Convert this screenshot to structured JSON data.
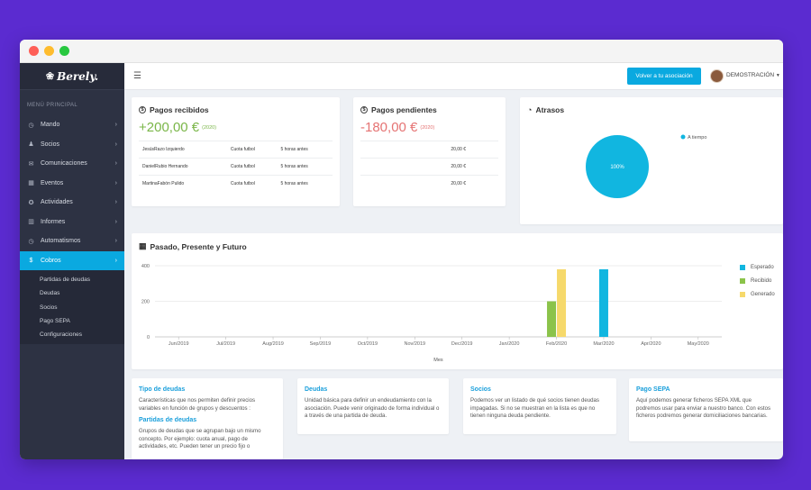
{
  "colors": {
    "accent": "#0aa9e0",
    "sidebar": "#2d3243",
    "green": "#7ab648",
    "red": "#e57373",
    "bar_esperado": "#11b6e0",
    "bar_recibido": "#8bc34a",
    "bar_generado": "#f6d96b"
  },
  "app": {
    "logo": "Berely."
  },
  "sidebar": {
    "menu_title": "MENÚ PRINCIPAL",
    "items": [
      {
        "label": "Mando",
        "icon": "clock-icon"
      },
      {
        "label": "Socios",
        "icon": "users-icon"
      },
      {
        "label": "Comunicaciones",
        "icon": "mail-icon"
      },
      {
        "label": "Eventos",
        "icon": "calendar-icon"
      },
      {
        "label": "Actividades",
        "icon": "star-icon"
      },
      {
        "label": "Informes",
        "icon": "chart-icon"
      },
      {
        "label": "Automatismos",
        "icon": "clock-icon"
      },
      {
        "label": "Cobros",
        "icon": "dollar-icon",
        "active": true
      }
    ],
    "subitems": [
      "Partidas de deudas",
      "Deudas",
      "Socios",
      "Pago SEPA",
      "Configuraciones"
    ]
  },
  "topbar": {
    "back_button": "Volver a tu asociación",
    "user_name": "DEMOSTRACIÓN"
  },
  "pagos_recibidos": {
    "title": "Pagos recibidos",
    "amount": "+200,00 €",
    "year": "(2020)",
    "rows": [
      {
        "name": "JesúsRazo Izquierdo",
        "concept": "Cuota futbol",
        "time": "5 horas antes"
      },
      {
        "name": "DanielRubio Hernando",
        "concept": "Cuota futbol",
        "time": "5 horas antes"
      },
      {
        "name": "MartinaFabón Pulido",
        "concept": "Cuota futbol",
        "time": "5 horas antes"
      }
    ]
  },
  "pagos_pendientes": {
    "title": "Pagos pendientes",
    "amount": "-180,00 €",
    "year": "(2020)",
    "rows": [
      {
        "value": "20,00 €"
      },
      {
        "value": "20,00 €"
      },
      {
        "value": "20,00 €"
      }
    ]
  },
  "atrasos": {
    "title": "Atrasos",
    "legend": "A tiempo",
    "pie_label": "100%",
    "pie_value": 1.0
  },
  "chart_title": "Pasado, Presente y Futuro",
  "chart_data": {
    "type": "bar",
    "categories": [
      "Jun/2019",
      "Jul/2019",
      "Aug/2019",
      "Sep/2019",
      "Oct/2019",
      "Nov/2019",
      "Dec/2019",
      "Jan/2020",
      "Feb/2020",
      "Mar/2020",
      "Apr/2020",
      "May/2020"
    ],
    "series": [
      {
        "name": "Esperado",
        "values": [
          0,
          0,
          0,
          0,
          0,
          0,
          0,
          0,
          0,
          380,
          0,
          0
        ]
      },
      {
        "name": "Recibido",
        "values": [
          0,
          0,
          0,
          0,
          0,
          0,
          0,
          0,
          200,
          0,
          0,
          0
        ]
      },
      {
        "name": "Generado",
        "values": [
          0,
          0,
          0,
          0,
          0,
          0,
          0,
          0,
          380,
          0,
          0,
          0
        ]
      }
    ],
    "xlabel": "Mes",
    "ylabel": "",
    "yticks": [
      0,
      200,
      400
    ],
    "ylim": [
      0,
      400
    ],
    "grid": true,
    "legend": "right"
  },
  "info": [
    {
      "title": "Tipo de deudas",
      "text": "Características que nos permiten definir precios variables en función de grupos y descuentos :",
      "sub_title": "Partidas de deudas",
      "sub_text": "Grupos de deudas que se agrupan bajo un mismo concepto. Por ejemplo: cuota anual, pago de actividades, etc. Pueden tener un precio fijo o"
    },
    {
      "title": "Deudas",
      "text": "Unidad básica para definir un endeudamiento con la asociación. Puede venir originado de forma individual o a través de una partida de deuda."
    },
    {
      "title": "Socios",
      "text": "Podemos ver un listado de qué socios tienen deudas impagadas. Si no se muestran en la lista es que no tienen ninguna deuda pendiente."
    },
    {
      "title": "Pago SEPA",
      "text": "Aquí podemos generar ficheros SEPA XML que podremos usar para enviar a nuestro banco. Con estos ficheros podremos generar domiciliaciones bancarias."
    }
  ]
}
